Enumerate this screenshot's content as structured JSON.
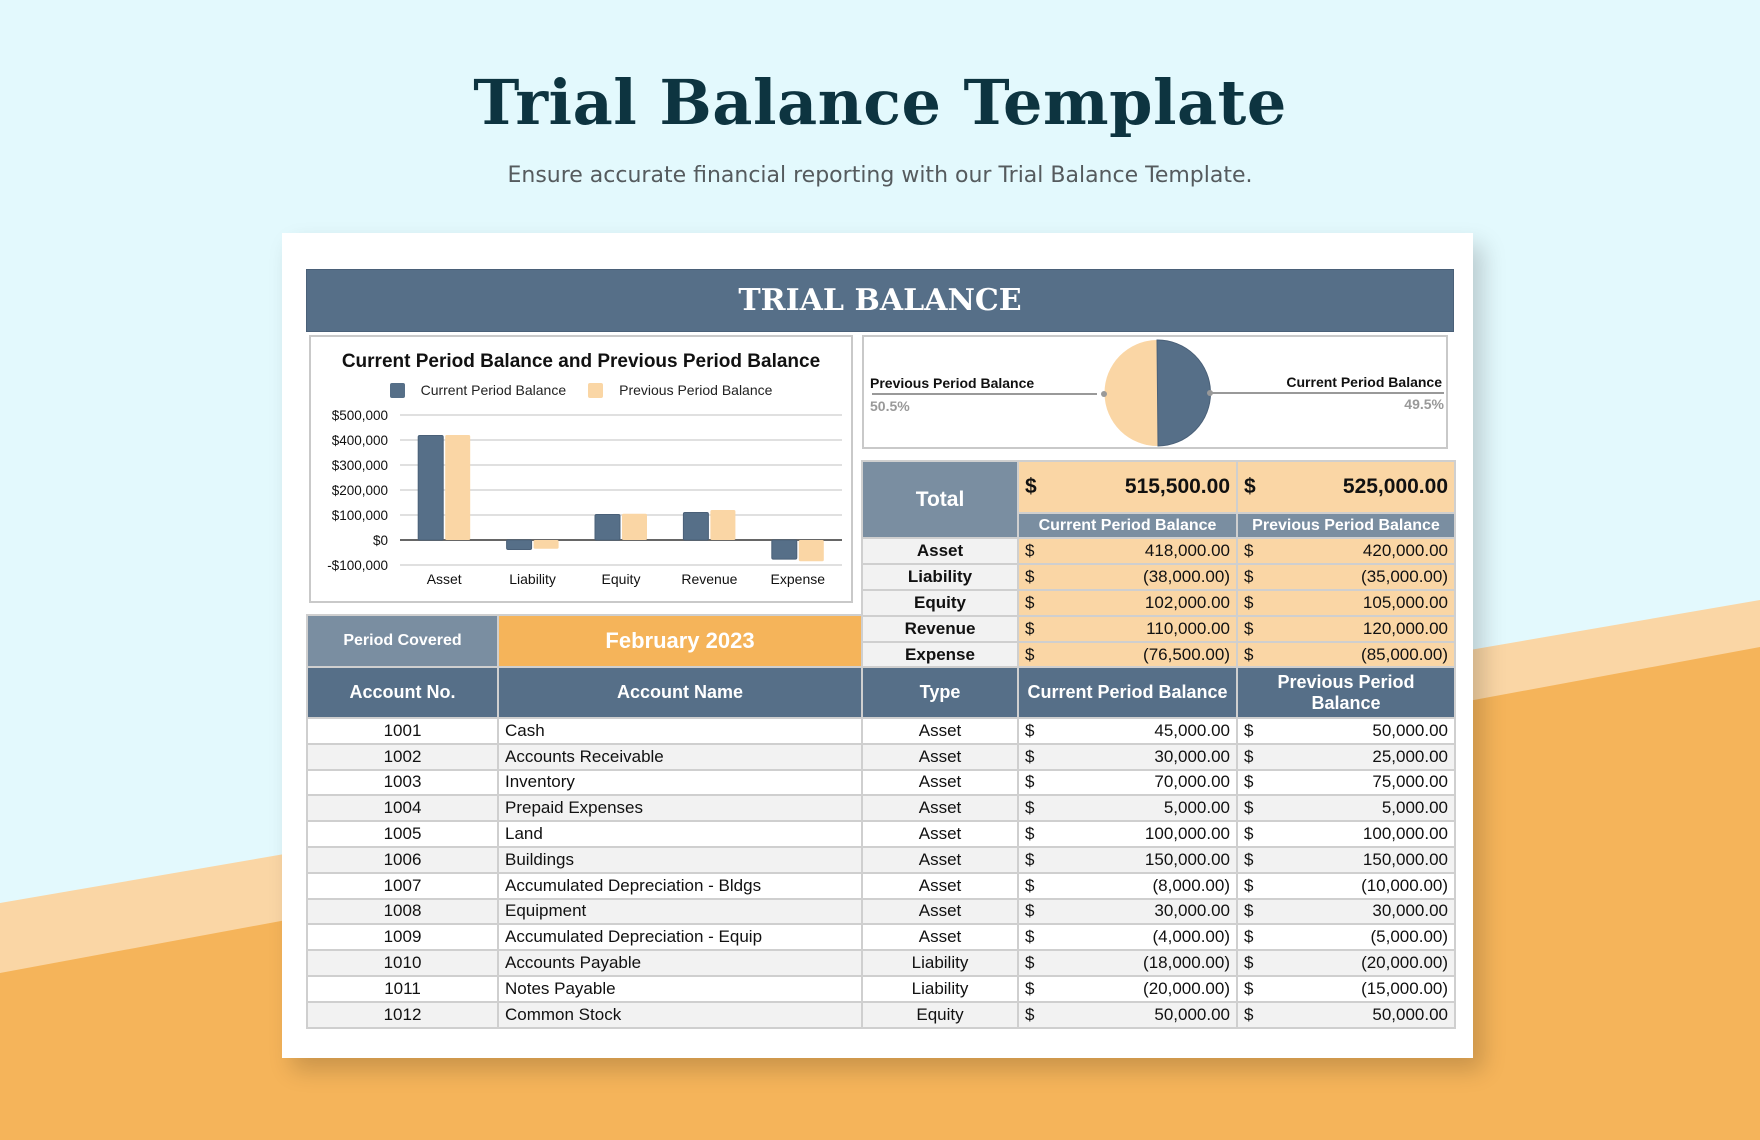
{
  "page": {
    "title": "Trial Balance Template",
    "subtitle": "Ensure accurate financial reporting with our Trial Balance Template."
  },
  "colors": {
    "background": "#e3f9fd",
    "band_light": "#fad6a5",
    "band_orange": "#f5b45a",
    "header_blue": "#566f88",
    "header_gray": "#7a8ea1",
    "accent_peach": "#fad6a5",
    "period_orange": "#f5b45a",
    "title_dark": "#0d3440"
  },
  "sheet": {
    "header": "TRIAL BALANCE"
  },
  "chart_data": [
    {
      "type": "bar",
      "title": "Current Period Balance  and  Previous Period Balance",
      "categories": [
        "Asset",
        "Liability",
        "Equity",
        "Revenue",
        "Expense"
      ],
      "series": [
        {
          "name": "Current Period Balance",
          "color": "#566f88",
          "values": [
            418000,
            -38000,
            102000,
            110000,
            -76500
          ]
        },
        {
          "name": "Previous Period Balance",
          "color": "#fad6a5",
          "values": [
            420000,
            -35000,
            105000,
            120000,
            -85000
          ]
        }
      ],
      "yticks": [
        "$500,000",
        "$400,000",
        "$300,000",
        "$200,000",
        "$100,000",
        "$0",
        "-$100,000"
      ],
      "ylim": [
        -100000,
        500000
      ],
      "xlabel": "",
      "ylabel": "",
      "grid": true,
      "legend_position": "top"
    },
    {
      "type": "pie",
      "slices": [
        {
          "label": "Previous Period Balance",
          "value": 50.5,
          "display": "50.5%",
          "color": "#fad6a5"
        },
        {
          "label": "Current Period Balance",
          "value": 49.5,
          "display": "49.5%",
          "color": "#566f88"
        }
      ]
    }
  ],
  "summary": {
    "total_label": "Total",
    "currency": "$",
    "total_current": "515,500.00",
    "total_previous": "525,000.00",
    "col_current": "Current Period Balance",
    "col_previous": "Previous Period Balance",
    "rows": [
      {
        "category": "Asset",
        "current": "418,000.00",
        "previous": "420,000.00"
      },
      {
        "category": "Liability",
        "current": "(38,000.00)",
        "previous": "(35,000.00)"
      },
      {
        "category": "Equity",
        "current": "102,000.00",
        "previous": "105,000.00"
      },
      {
        "category": "Revenue",
        "current": "110,000.00",
        "previous": "120,000.00"
      },
      {
        "category": "Expense",
        "current": "(76,500.00)",
        "previous": "(85,000.00)"
      }
    ]
  },
  "period": {
    "label": "Period Covered",
    "value": "February 2023"
  },
  "table": {
    "headers": [
      "Account No.",
      "Account Name",
      "Type",
      "Current Period Balance",
      "Previous Period Balance"
    ],
    "currency": "$",
    "rows": [
      {
        "no": "1001",
        "name": "Cash",
        "type": "Asset",
        "current": "45,000.00",
        "previous": "50,000.00"
      },
      {
        "no": "1002",
        "name": "Accounts Receivable",
        "type": "Asset",
        "current": "30,000.00",
        "previous": "25,000.00"
      },
      {
        "no": "1003",
        "name": "Inventory",
        "type": "Asset",
        "current": "70,000.00",
        "previous": "75,000.00"
      },
      {
        "no": "1004",
        "name": "Prepaid Expenses",
        "type": "Asset",
        "current": "5,000.00",
        "previous": "5,000.00"
      },
      {
        "no": "1005",
        "name": "Land",
        "type": "Asset",
        "current": "100,000.00",
        "previous": "100,000.00"
      },
      {
        "no": "1006",
        "name": "Buildings",
        "type": "Asset",
        "current": "150,000.00",
        "previous": "150,000.00"
      },
      {
        "no": "1007",
        "name": "Accumulated Depreciation - Bldgs",
        "type": "Asset",
        "current": "(8,000.00)",
        "previous": "(10,000.00)"
      },
      {
        "no": "1008",
        "name": "Equipment",
        "type": "Asset",
        "current": "30,000.00",
        "previous": "30,000.00"
      },
      {
        "no": "1009",
        "name": "Accumulated Depreciation - Equip",
        "type": "Asset",
        "current": "(4,000.00)",
        "previous": "(5,000.00)"
      },
      {
        "no": "1010",
        "name": "Accounts Payable",
        "type": "Liability",
        "current": "(18,000.00)",
        "previous": "(20,000.00)"
      },
      {
        "no": "1011",
        "name": "Notes Payable",
        "type": "Liability",
        "current": "(20,000.00)",
        "previous": "(15,000.00)"
      },
      {
        "no": "1012",
        "name": "Common Stock",
        "type": "Equity",
        "current": "50,000.00",
        "previous": "50,000.00"
      }
    ]
  }
}
